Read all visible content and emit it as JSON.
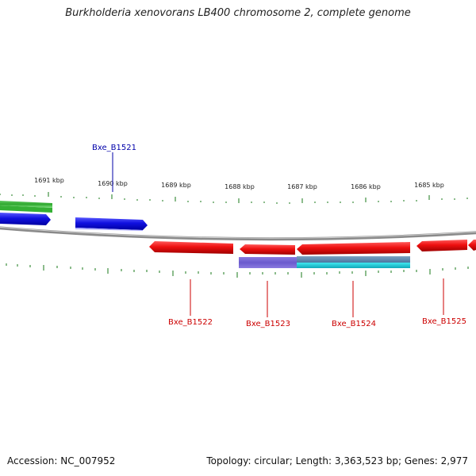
{
  "title": "Burkholderia xenovorans LB400 chromosome 2, complete genome",
  "accession_label": "Accession: NC_007952",
  "summary_label": "Topology: circular; Length: 3,363,523 bp; Genes: 2,977",
  "ruler_labels": [
    "1691 kbp",
    "1690 kbp",
    "1689 kbp",
    "1688 kbp",
    "1687 kbp",
    "1686 kbp",
    "1685 kbp"
  ],
  "features": [
    {
      "name": "Bxe_B1521",
      "strand": "forward",
      "color": "#0000cc"
    },
    {
      "name": "Bxe_B1522",
      "strand": "reverse",
      "color": "#cc0000"
    },
    {
      "name": "Bxe_B1523",
      "strand": "reverse",
      "color": "#cc0000"
    },
    {
      "name": "Bxe_B1524",
      "strand": "reverse",
      "color": "#cc0000"
    },
    {
      "name": "Bxe_B1525",
      "strand": "reverse",
      "color": "#cc0000"
    }
  ],
  "colors": {
    "forward_gene": "#1010e0",
    "reverse_gene": "#ee1010",
    "rna_gene": "#2ea82e",
    "overlap_feature_purple": "#6a5acd",
    "overlap_feature_cyan": "#20c8d0",
    "backbone": "#888888",
    "tick": "#1a7a1a"
  }
}
